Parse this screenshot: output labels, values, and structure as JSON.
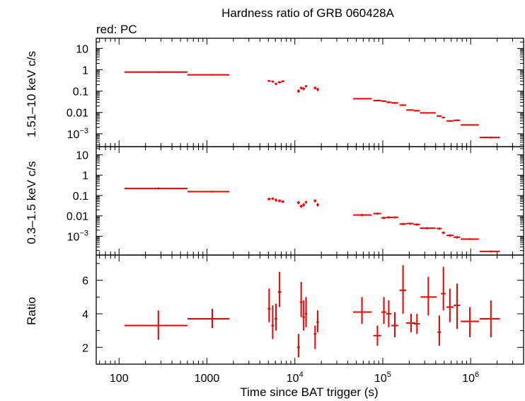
{
  "chart_data": {
    "type": "scatter",
    "title": "Hardness ratio of GRB 060428A",
    "subtitle": "red: PC",
    "xlabel": "Time since BAT trigger (s)",
    "x_scale": "log",
    "xlim": [
      55,
      4000000
    ],
    "x_ticks": [
      {
        "v": 100,
        "label": "100"
      },
      {
        "v": 1000,
        "label": "1000"
      },
      {
        "v": 10000,
        "label": "10",
        "exp": "4"
      },
      {
        "v": 100000,
        "label": "10",
        "exp": "5"
      },
      {
        "v": 1000000,
        "label": "10",
        "exp": "6"
      }
    ],
    "series_color": "#ee0000",
    "panels": [
      {
        "id": "hard",
        "ylabel": "1.51–10 keV c/s",
        "y_scale": "log",
        "ylim": [
          0.00025,
          30
        ],
        "y_ticks": [
          {
            "v": 10,
            "label": "10"
          },
          {
            "v": 1,
            "label": "1"
          },
          {
            "v": 0.1,
            "label": "0.1"
          },
          {
            "v": 0.01,
            "label": "0.01"
          },
          {
            "v": 0.001,
            "label": "10",
            "exp": "−3"
          }
        ],
        "points": [
          {
            "x": 280,
            "xlo": 115,
            "xhi": 600,
            "y": 0.78,
            "ylo": 0.7,
            "yhi": 0.86
          },
          {
            "x": 1150,
            "xlo": 600,
            "xhi": 1800,
            "y": 0.58,
            "ylo": 0.53,
            "yhi": 0.63
          },
          {
            "x": 5100,
            "xlo": 4900,
            "xhi": 5300,
            "y": 0.3,
            "ylo": 0.27,
            "yhi": 0.33
          },
          {
            "x": 5600,
            "xlo": 5400,
            "xhi": 5800,
            "y": 0.28,
            "ylo": 0.25,
            "yhi": 0.31
          },
          {
            "x": 6100,
            "xlo": 5900,
            "xhi": 6300,
            "y": 0.22,
            "ylo": 0.19,
            "yhi": 0.25
          },
          {
            "x": 6700,
            "xlo": 6400,
            "xhi": 7000,
            "y": 0.26,
            "ylo": 0.23,
            "yhi": 0.29
          },
          {
            "x": 7300,
            "xlo": 7000,
            "xhi": 7600,
            "y": 0.29,
            "ylo": 0.26,
            "yhi": 0.32
          },
          {
            "x": 11000,
            "xlo": 10600,
            "xhi": 11400,
            "y": 0.1,
            "ylo": 0.085,
            "yhi": 0.12
          },
          {
            "x": 11800,
            "xlo": 11400,
            "xhi": 12200,
            "y": 0.14,
            "ylo": 0.12,
            "yhi": 0.16
          },
          {
            "x": 12600,
            "xlo": 12200,
            "xhi": 13000,
            "y": 0.13,
            "ylo": 0.11,
            "yhi": 0.15
          },
          {
            "x": 13400,
            "xlo": 13000,
            "xhi": 13800,
            "y": 0.17,
            "ylo": 0.15,
            "yhi": 0.19
          },
          {
            "x": 17000,
            "xlo": 16400,
            "xhi": 17600,
            "y": 0.14,
            "ylo": 0.12,
            "yhi": 0.16
          },
          {
            "x": 18200,
            "xlo": 17600,
            "xhi": 18800,
            "y": 0.12,
            "ylo": 0.1,
            "yhi": 0.14
          },
          {
            "x": 58000,
            "xlo": 46000,
            "xhi": 75000,
            "y": 0.044,
            "ylo": 0.041,
            "yhi": 0.047
          },
          {
            "x": 87000,
            "xlo": 78000,
            "xhi": 96000,
            "y": 0.036,
            "ylo": 0.033,
            "yhi": 0.039
          },
          {
            "x": 103000,
            "xlo": 96000,
            "xhi": 110000,
            "y": 0.034,
            "ylo": 0.031,
            "yhi": 0.037
          },
          {
            "x": 117000,
            "xlo": 110000,
            "xhi": 125000,
            "y": 0.03,
            "ylo": 0.027,
            "yhi": 0.033
          },
          {
            "x": 137000,
            "xlo": 125000,
            "xhi": 150000,
            "y": 0.028,
            "ylo": 0.025,
            "yhi": 0.031
          },
          {
            "x": 170000,
            "xlo": 155000,
            "xhi": 185000,
            "y": 0.022,
            "ylo": 0.02,
            "yhi": 0.024
          },
          {
            "x": 205000,
            "xlo": 185000,
            "xhi": 225000,
            "y": 0.013,
            "ylo": 0.012,
            "yhi": 0.014
          },
          {
            "x": 245000,
            "xlo": 225000,
            "xhi": 265000,
            "y": 0.012,
            "ylo": 0.011,
            "yhi": 0.013
          },
          {
            "x": 320000,
            "xlo": 265000,
            "xhi": 400000,
            "y": 0.0095,
            "ylo": 0.0088,
            "yhi": 0.0102
          },
          {
            "x": 440000,
            "xlo": 410000,
            "xhi": 470000,
            "y": 0.0068,
            "ylo": 0.0062,
            "yhi": 0.0074
          },
          {
            "x": 490000,
            "xlo": 470000,
            "xhi": 510000,
            "y": 0.0058,
            "ylo": 0.0053,
            "yhi": 0.0063
          },
          {
            "x": 580000,
            "xlo": 530000,
            "xhi": 640000,
            "y": 0.004,
            "ylo": 0.0036,
            "yhi": 0.0044
          },
          {
            "x": 700000,
            "xlo": 640000,
            "xhi": 760000,
            "y": 0.0043,
            "ylo": 0.0039,
            "yhi": 0.0047
          },
          {
            "x": 980000,
            "xlo": 770000,
            "xhi": 1240000,
            "y": 0.0026,
            "ylo": 0.0024,
            "yhi": 0.0028
          },
          {
            "x": 1700000,
            "xlo": 1270000,
            "xhi": 2150000,
            "y": 0.00067,
            "ylo": 0.0006,
            "yhi": 0.00074
          }
        ]
      },
      {
        "id": "soft",
        "ylabel": "0.3–1.5 keV c/s",
        "y_scale": "log",
        "ylim": [
          0.00012,
          25
        ],
        "y_ticks": [
          {
            "v": 10,
            "label": "10"
          },
          {
            "v": 1,
            "label": "1"
          },
          {
            "v": 0.1,
            "label": "0.1"
          },
          {
            "v": 0.01,
            "label": "0.01"
          },
          {
            "v": 0.001,
            "label": "10",
            "exp": "−3"
          }
        ],
        "points": [
          {
            "x": 280,
            "xlo": 115,
            "xhi": 600,
            "y": 0.22,
            "ylo": 0.2,
            "yhi": 0.25
          },
          {
            "x": 1150,
            "xlo": 600,
            "xhi": 1800,
            "y": 0.155,
            "ylo": 0.14,
            "yhi": 0.17
          },
          {
            "x": 5100,
            "xlo": 4900,
            "xhi": 5300,
            "y": 0.068,
            "ylo": 0.058,
            "yhi": 0.078
          },
          {
            "x": 5600,
            "xlo": 5400,
            "xhi": 5800,
            "y": 0.07,
            "ylo": 0.06,
            "yhi": 0.08
          },
          {
            "x": 6100,
            "xlo": 5900,
            "xhi": 6300,
            "y": 0.06,
            "ylo": 0.05,
            "yhi": 0.07
          },
          {
            "x": 6700,
            "xlo": 6400,
            "xhi": 7000,
            "y": 0.055,
            "ylo": 0.047,
            "yhi": 0.064
          },
          {
            "x": 7300,
            "xlo": 7000,
            "xhi": 7600,
            "y": 0.05,
            "ylo": 0.043,
            "yhi": 0.058
          },
          {
            "x": 11000,
            "xlo": 10600,
            "xhi": 11400,
            "y": 0.045,
            "ylo": 0.038,
            "yhi": 0.053
          },
          {
            "x": 11800,
            "xlo": 11400,
            "xhi": 12200,
            "y": 0.03,
            "ylo": 0.025,
            "yhi": 0.036
          },
          {
            "x": 12600,
            "xlo": 12200,
            "xhi": 13000,
            "y": 0.035,
            "ylo": 0.029,
            "yhi": 0.042
          },
          {
            "x": 13400,
            "xlo": 13000,
            "xhi": 13800,
            "y": 0.047,
            "ylo": 0.04,
            "yhi": 0.055
          },
          {
            "x": 17000,
            "xlo": 16400,
            "xhi": 17600,
            "y": 0.055,
            "ylo": 0.046,
            "yhi": 0.065
          },
          {
            "x": 18200,
            "xlo": 17600,
            "xhi": 18800,
            "y": 0.035,
            "ylo": 0.029,
            "yhi": 0.042
          },
          {
            "x": 58000,
            "xlo": 46000,
            "xhi": 75000,
            "y": 0.011,
            "ylo": 0.0095,
            "yhi": 0.0125
          },
          {
            "x": 87000,
            "xlo": 78000,
            "xhi": 96000,
            "y": 0.013,
            "ylo": 0.0115,
            "yhi": 0.0145
          },
          {
            "x": 103000,
            "xlo": 96000,
            "xhi": 110000,
            "y": 0.008,
            "ylo": 0.007,
            "yhi": 0.009
          },
          {
            "x": 117000,
            "xlo": 110000,
            "xhi": 125000,
            "y": 0.0085,
            "ylo": 0.0075,
            "yhi": 0.0095
          },
          {
            "x": 137000,
            "xlo": 125000,
            "xhi": 150000,
            "y": 0.0085,
            "ylo": 0.0075,
            "yhi": 0.0095
          },
          {
            "x": 170000,
            "xlo": 155000,
            "xhi": 185000,
            "y": 0.004,
            "ylo": 0.0035,
            "yhi": 0.0045
          },
          {
            "x": 205000,
            "xlo": 185000,
            "xhi": 225000,
            "y": 0.0042,
            "ylo": 0.0037,
            "yhi": 0.0047
          },
          {
            "x": 245000,
            "xlo": 225000,
            "xhi": 265000,
            "y": 0.0038,
            "ylo": 0.0033,
            "yhi": 0.0043
          },
          {
            "x": 320000,
            "xlo": 265000,
            "xhi": 400000,
            "y": 0.0025,
            "ylo": 0.0022,
            "yhi": 0.0028
          },
          {
            "x": 440000,
            "xlo": 410000,
            "xhi": 470000,
            "y": 0.0024,
            "ylo": 0.0021,
            "yhi": 0.0027
          },
          {
            "x": 490000,
            "xlo": 470000,
            "xhi": 510000,
            "y": 0.0015,
            "ylo": 0.0013,
            "yhi": 0.0017
          },
          {
            "x": 580000,
            "xlo": 530000,
            "xhi": 640000,
            "y": 0.0011,
            "ylo": 0.00095,
            "yhi": 0.00125
          },
          {
            "x": 700000,
            "xlo": 640000,
            "xhi": 760000,
            "y": 0.0009,
            "ylo": 0.00078,
            "yhi": 0.00102
          },
          {
            "x": 980000,
            "xlo": 770000,
            "xhi": 1240000,
            "y": 0.00073,
            "ylo": 0.00065,
            "yhi": 0.00081
          },
          {
            "x": 1700000,
            "xlo": 1270000,
            "xhi": 2150000,
            "y": 0.00018,
            "ylo": 0.00016,
            "yhi": 0.0002
          }
        ]
      },
      {
        "id": "ratio",
        "ylabel": "Ratio",
        "y_scale": "linear",
        "ylim": [
          1,
          7.5
        ],
        "y_ticks": [
          {
            "v": 2,
            "label": "2"
          },
          {
            "v": 4,
            "label": "4"
          },
          {
            "v": 6,
            "label": "6"
          }
        ],
        "y_minor": [
          1,
          3,
          5,
          7
        ],
        "points": [
          {
            "x": 280,
            "xlo": 115,
            "xhi": 600,
            "y": 3.3,
            "ylo": 2.45,
            "yhi": 4.2
          },
          {
            "x": 1150,
            "xlo": 600,
            "xhi": 1800,
            "y": 3.7,
            "ylo": 3.15,
            "yhi": 4.3
          },
          {
            "x": 5100,
            "xlo": 4900,
            "xhi": 5300,
            "y": 4.3,
            "ylo": 3.5,
            "yhi": 5.5
          },
          {
            "x": 5600,
            "xlo": 5400,
            "xhi": 5800,
            "y": 3.3,
            "ylo": 2.5,
            "yhi": 4.5
          },
          {
            "x": 6100,
            "xlo": 5900,
            "xhi": 6300,
            "y": 3.7,
            "ylo": 3.0,
            "yhi": 4.6
          },
          {
            "x": 6700,
            "xlo": 6400,
            "xhi": 7000,
            "y": 5.3,
            "ylo": 4.4,
            "yhi": 6.5
          },
          {
            "x": 11000,
            "xlo": 10600,
            "xhi": 11400,
            "y": 2.0,
            "ylo": 1.4,
            "yhi": 2.8
          },
          {
            "x": 11800,
            "xlo": 11400,
            "xhi": 12200,
            "y": 4.7,
            "ylo": 3.8,
            "yhi": 5.9
          },
          {
            "x": 12600,
            "xlo": 12200,
            "xhi": 13000,
            "y": 3.8,
            "ylo": 3.0,
            "yhi": 4.8
          },
          {
            "x": 13400,
            "xlo": 13000,
            "xhi": 13800,
            "y": 4.0,
            "ylo": 3.2,
            "yhi": 5.0
          },
          {
            "x": 17000,
            "xlo": 16400,
            "xhi": 17600,
            "y": 2.8,
            "ylo": 1.9,
            "yhi": 3.3
          },
          {
            "x": 18200,
            "xlo": 17600,
            "xhi": 18800,
            "y": 3.5,
            "ylo": 2.9,
            "yhi": 4.2
          },
          {
            "x": 58000,
            "xlo": 46000,
            "xhi": 75000,
            "y": 4.1,
            "ylo": 3.4,
            "yhi": 5.0
          },
          {
            "x": 87000,
            "xlo": 78000,
            "xhi": 96000,
            "y": 2.7,
            "ylo": 2.1,
            "yhi": 3.3
          },
          {
            "x": 103000,
            "xlo": 96000,
            "xhi": 110000,
            "y": 4.1,
            "ylo": 3.4,
            "yhi": 5.0
          },
          {
            "x": 117000,
            "xlo": 110000,
            "xhi": 125000,
            "y": 4.0,
            "ylo": 3.2,
            "yhi": 4.8
          },
          {
            "x": 137000,
            "xlo": 125000,
            "xhi": 150000,
            "y": 3.3,
            "ylo": 2.6,
            "yhi": 4.1
          },
          {
            "x": 170000,
            "xlo": 155000,
            "xhi": 185000,
            "y": 5.4,
            "ylo": 4.0,
            "yhi": 6.9
          },
          {
            "x": 210000,
            "xlo": 185000,
            "xhi": 235000,
            "y": 3.45,
            "ylo": 2.9,
            "yhi": 4.0
          },
          {
            "x": 245000,
            "xlo": 225000,
            "xhi": 265000,
            "y": 3.4,
            "ylo": 2.8,
            "yhi": 4.0
          },
          {
            "x": 330000,
            "xlo": 270000,
            "xhi": 410000,
            "y": 5.0,
            "ylo": 3.9,
            "yhi": 6.2
          },
          {
            "x": 440000,
            "xlo": 420000,
            "xhi": 460000,
            "y": 2.9,
            "ylo": 2.1,
            "yhi": 3.9
          },
          {
            "x": 490000,
            "xlo": 460000,
            "xhi": 520000,
            "y": 5.2,
            "ylo": 4.2,
            "yhi": 6.8
          },
          {
            "x": 580000,
            "xlo": 530000,
            "xhi": 640000,
            "y": 4.4,
            "ylo": 3.5,
            "yhi": 5.5
          },
          {
            "x": 700000,
            "xlo": 640000,
            "xhi": 760000,
            "y": 4.5,
            "ylo": 3.1,
            "yhi": 5.8
          },
          {
            "x": 980000,
            "xlo": 770000,
            "xhi": 1240000,
            "y": 3.55,
            "ylo": 2.6,
            "yhi": 4.4
          },
          {
            "x": 1700000,
            "xlo": 1270000,
            "xhi": 2150000,
            "y": 3.7,
            "ylo": 2.6,
            "yhi": 4.8
          }
        ]
      }
    ]
  }
}
